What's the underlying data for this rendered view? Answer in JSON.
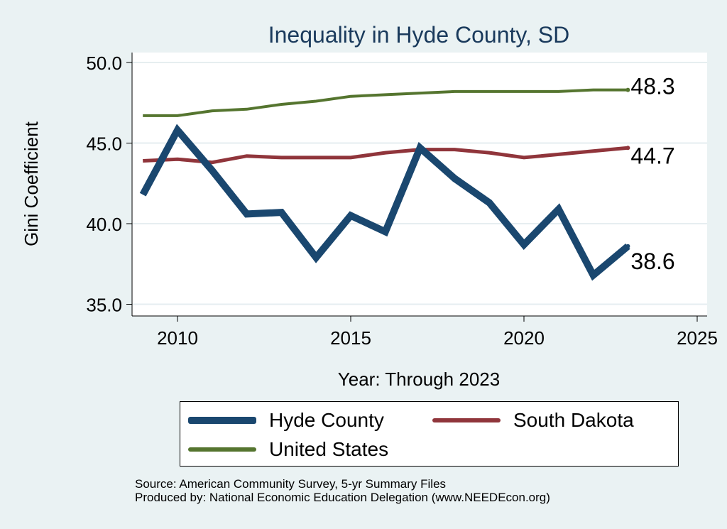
{
  "chart_data": {
    "type": "line",
    "title": "Inequality in Hyde County, SD",
    "xlabel": "Year: Through 2023",
    "ylabel": "Gini Coefficient",
    "xlim": [
      2009,
      2025
    ],
    "ylim": [
      35,
      50
    ],
    "xticks": [
      2010,
      2015,
      2020,
      2025
    ],
    "yticks": [
      35,
      40,
      45,
      50
    ],
    "xtick_labels": [
      "2010",
      "2015",
      "2020",
      "2025"
    ],
    "ytick_labels": [
      "35.0",
      "40.0",
      "45.0",
      "50.0"
    ],
    "grid": true,
    "x": [
      2009,
      2010,
      2011,
      2012,
      2013,
      2014,
      2015,
      2016,
      2017,
      2018,
      2019,
      2020,
      2021,
      2022,
      2023
    ],
    "series": [
      {
        "name": "Hyde County",
        "color": "#1a476f",
        "values": [
          41.8,
          45.8,
          43.3,
          40.6,
          40.7,
          37.9,
          40.5,
          39.5,
          44.7,
          42.8,
          41.3,
          38.7,
          40.9,
          36.8,
          38.6
        ],
        "end_label": "38.6"
      },
      {
        "name": "South Dakota",
        "color": "#90353b",
        "values": [
          43.9,
          44.0,
          43.8,
          44.2,
          44.1,
          44.1,
          44.1,
          44.4,
          44.6,
          44.6,
          44.4,
          44.1,
          44.3,
          44.5,
          44.7
        ],
        "end_label": "44.7"
      },
      {
        "name": "United States",
        "color": "#55752f",
        "values": [
          46.7,
          46.7,
          47.0,
          47.1,
          47.4,
          47.6,
          47.9,
          48.0,
          48.1,
          48.2,
          48.2,
          48.2,
          48.2,
          48.3,
          48.3
        ],
        "end_label": "48.3"
      }
    ]
  },
  "legend": {
    "items": [
      {
        "label": "Hyde County"
      },
      {
        "label": "South Dakota"
      },
      {
        "label": "United States"
      }
    ]
  },
  "source": {
    "line1": "Source: American Community Survey, 5-yr Summary Files",
    "line2": "Produced by: National Economic Education Delegation (www.NEEDEcon.org)"
  }
}
